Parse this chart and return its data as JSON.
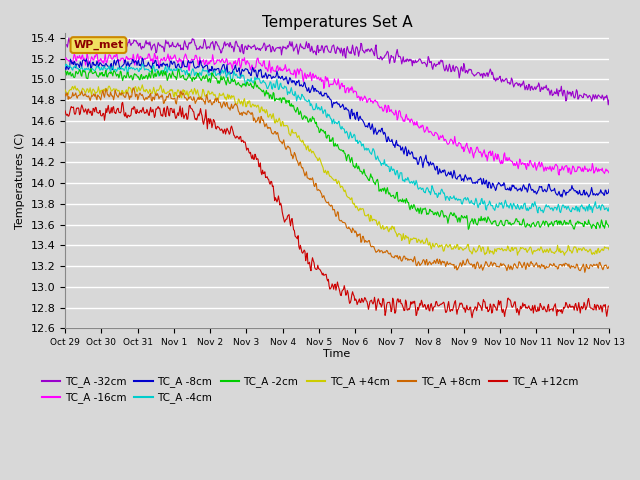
{
  "title": "Temperatures Set A",
  "xlabel": "Time",
  "ylabel": "Temperatures (C)",
  "ylim": [
    12.6,
    15.45
  ],
  "background_color": "#d8d8d8",
  "plot_bg_color": "#d8d8d8",
  "grid_color": "#ffffff",
  "series": [
    {
      "label": "TC_A -32cm",
      "color": "#9900cc"
    },
    {
      "label": "TC_A -16cm",
      "color": "#ff00ff"
    },
    {
      "label": "TC_A -8cm",
      "color": "#0000cc"
    },
    {
      "label": "TC_A -4cm",
      "color": "#00cccc"
    },
    {
      "label": "TC_A -2cm",
      "color": "#00cc00"
    },
    {
      "label": "TC_A +4cm",
      "color": "#cccc00"
    },
    {
      "label": "TC_A +8cm",
      "color": "#cc6600"
    },
    {
      "label": "TC_A +12cm",
      "color": "#cc0000"
    }
  ],
  "x_tick_labels": [
    "Oct 29",
    "Oct 30",
    "Oct 31",
    "Nov 1",
    "Nov 2",
    "Nov 3",
    "Nov 4",
    "Nov 5",
    "Nov 6",
    "Nov 7",
    "Nov 8",
    "Nov 9",
    "Nov 10",
    "Nov 11",
    "Nov 12",
    "Nov 13"
  ],
  "n_days": 15,
  "wp_met_annotation": "WP_met",
  "legend_ncol": 6
}
